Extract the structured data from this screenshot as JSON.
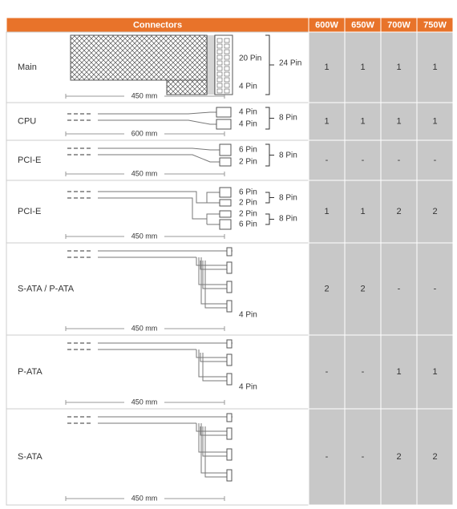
{
  "table": {
    "header": [
      "Connectors",
      "600W",
      "650W",
      "700W",
      "750W"
    ],
    "rows": [
      {
        "name": "Main",
        "pins": [
          "20 Pin",
          "4 Pin"
        ],
        "groups": [
          "24 Pin"
        ],
        "length": "450 mm",
        "values": [
          1,
          1,
          1,
          1
        ]
      },
      {
        "name": "CPU",
        "pins": [
          "4 Pin",
          "4 Pin"
        ],
        "groups": [
          "8 Pin"
        ],
        "length": "600 mm",
        "values": [
          1,
          1,
          1,
          1
        ]
      },
      {
        "name": "PCI-E",
        "pins": [
          "6 Pin",
          "2 Pin"
        ],
        "groups": [
          "8 Pin"
        ],
        "length": "450 mm",
        "values": [
          "-",
          "-",
          "-",
          "-"
        ]
      },
      {
        "name": "PCI-E",
        "pins": [
          "6 Pin",
          "2 Pin",
          "2 Pin",
          "6 Pin"
        ],
        "groups": [
          "8 Pin",
          "8 Pin"
        ],
        "length": "450 mm",
        "values": [
          1,
          1,
          2,
          2
        ]
      },
      {
        "name": "S-ATA / P-ATA",
        "pins": [
          "4 Pin"
        ],
        "length": "450 mm",
        "values": [
          2,
          2,
          "-",
          "-"
        ]
      },
      {
        "name": "P-ATA",
        "pins": [
          "4 Pin"
        ],
        "length": "450 mm",
        "values": [
          "-",
          "-",
          1,
          1
        ]
      },
      {
        "name": "S-ATA",
        "length": "450 mm",
        "values": [
          "-",
          "-",
          2,
          2
        ]
      }
    ]
  }
}
